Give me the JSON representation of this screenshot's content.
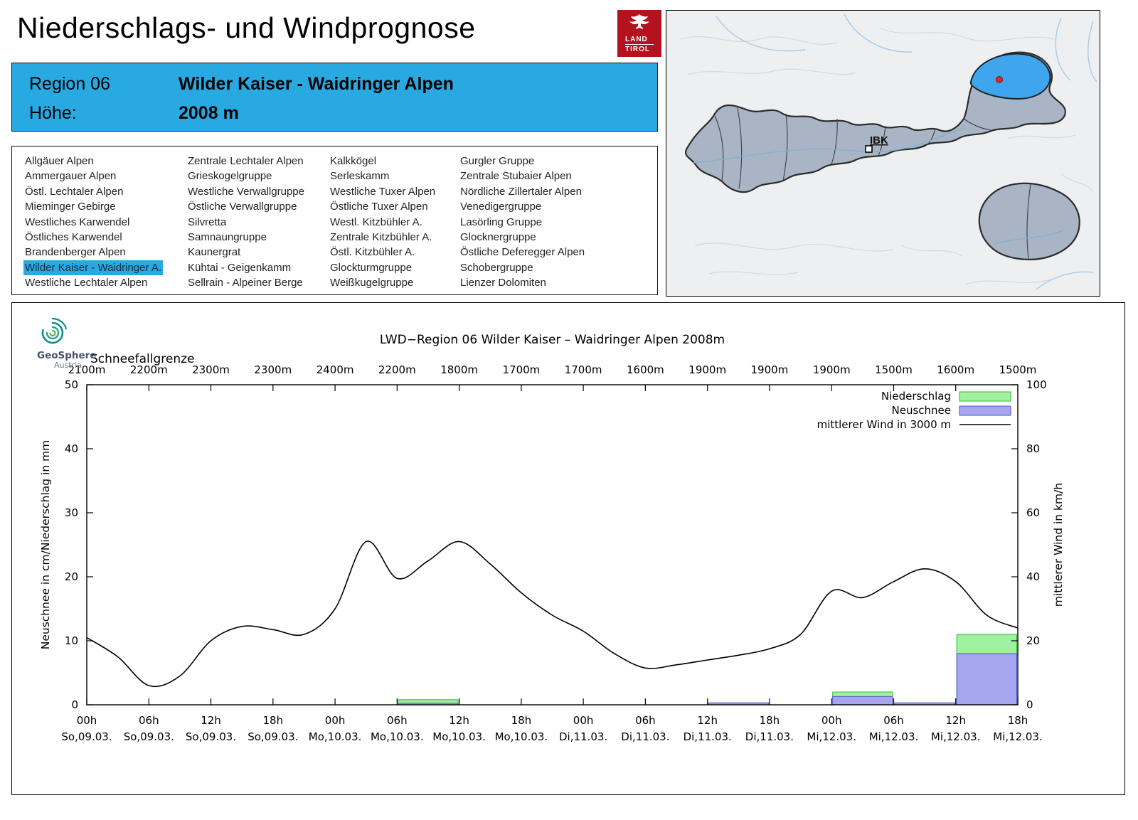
{
  "page": {
    "title": "Niederschlags- und Windprognose"
  },
  "logo": {
    "line1": "LAND",
    "line2": "TIROL"
  },
  "region_header": {
    "region_label": "Region 06",
    "region_value": "Wilder Kaiser - Waidringer Alpen",
    "altitude_label": "Höhe:",
    "altitude_value": "2008 m",
    "accent_color": "#29a9e1"
  },
  "map": {
    "city_label": "IBK"
  },
  "regions": {
    "selected": "Wilder Kaiser - Waidringer A.",
    "columns": [
      [
        "Allgäuer Alpen",
        "Ammergauer Alpen",
        "Östl. Lechtaler Alpen",
        "Mieminger Gebirge",
        "Westliches Karwendel",
        "Östliches Karwendel",
        "Brandenberger Alpen",
        "Wilder Kaiser - Waidringer A.",
        "Westliche Lechtaler Alpen"
      ],
      [
        "Zentrale Lechtaler Alpen",
        "Grieskogelgruppe",
        "Westliche Verwallgruppe",
        "Östliche Verwallgruppe",
        "Silvretta",
        "Samnaungruppe",
        "Kaunergrat",
        "Kühtai - Geigenkamm",
        "Sellrain - Alpeiner Berge"
      ],
      [
        "Kalkkögel",
        "Serleskamm",
        "Westliche Tuxer Alpen",
        "Östliche Tuxer Alpen",
        "Westl. Kitzbühler A.",
        "Zentrale Kitzbühler A.",
        "Östl. Kitzbühler A.",
        "Glockturmgruppe",
        "Weißkugelgruppe"
      ],
      [
        "Gurgler Gruppe",
        "Zentrale Stubaier Alpen",
        "Nördliche Zillertaler Alpen",
        "Venedigergruppe",
        "Lasörling Gruppe",
        "Glocknergruppe",
        "Östliche Deferegger Alpen",
        "Schobergruppe",
        "Lienzer Dolomiten"
      ]
    ]
  },
  "geosphere": {
    "name": "GeoSphere",
    "sub": "Austria"
  },
  "chart_data": {
    "type": "line+bar",
    "title": "LWD−Region 06 Wilder Kaiser – Waidringer Alpen 2008m",
    "snowline_label": "Schneefallgrenze",
    "snowline_values": [
      "2100m",
      "2200m",
      "2300m",
      "2300m",
      "2400m",
      "2200m",
      "1800m",
      "1700m",
      "1700m",
      "1600m",
      "1900m",
      "1900m",
      "1900m",
      "1500m",
      "1600m",
      "1500m"
    ],
    "x_hour_labels": [
      "00h",
      "06h",
      "12h",
      "18h",
      "00h",
      "06h",
      "12h",
      "18h",
      "00h",
      "06h",
      "12h",
      "18h",
      "00h",
      "06h",
      "12h",
      "18h"
    ],
    "x_date_labels": [
      "So,09.03.",
      "So,09.03.",
      "So,09.03.",
      "So,09.03.",
      "Mo,10.03.",
      "Mo,10.03.",
      "Mo,10.03.",
      "Mo,10.03.",
      "Di,11.03.",
      "Di,11.03.",
      "Di,11.03.",
      "Di,11.03.",
      "Mi,12.03.",
      "Mi,12.03.",
      "Mi,12.03.",
      "Mi,12.03."
    ],
    "ylabel_left": "Neuschnee in cm/Niederschlag in mm",
    "ylabel_right": "mittlerer Wind in km/h",
    "ylim_left": [
      0,
      50
    ],
    "ylim_right": [
      0,
      100
    ],
    "yticks_left": [
      0,
      10,
      20,
      30,
      40,
      50
    ],
    "yticks_right": [
      0,
      20,
      40,
      60,
      80,
      100
    ],
    "legend": [
      {
        "label": "Niederschlag",
        "type": "box",
        "fill": "#9ff09f",
        "stroke": "#2fbf2f"
      },
      {
        "label": "Neuschnee",
        "type": "box",
        "fill": "#a6a6ef",
        "stroke": "#5252cc"
      },
      {
        "label": "mittlerer Wind in 3000 m",
        "type": "line",
        "stroke": "#000000"
      }
    ],
    "wind_kmh": {
      "t_hours": [
        0,
        3,
        6,
        9,
        12,
        15,
        18,
        21,
        24,
        27,
        30,
        33,
        36,
        39,
        42,
        45,
        48,
        51,
        54,
        57,
        60,
        63,
        66,
        69,
        72,
        75,
        78,
        81,
        84,
        87,
        90
      ],
      "values": [
        21,
        15,
        6,
        9,
        20,
        24.5,
        23.5,
        22,
        30,
        51,
        39.5,
        45,
        51,
        44,
        35,
        28,
        23,
        16,
        11.5,
        12.5,
        14,
        15.5,
        17.5,
        22,
        35.5,
        33.5,
        38.5,
        42.5,
        38.5,
        28,
        24
      ]
    },
    "bars_6h": {
      "note": "one value per 6h interval between ticks, 15 intervals",
      "precip_mm": [
        0,
        0,
        0,
        0,
        0,
        0.8,
        0,
        0,
        0,
        0,
        0.3,
        0,
        2.0,
        0.3,
        11
      ],
      "neuschnee_cm": [
        0,
        0,
        0,
        0,
        0,
        0.25,
        0,
        0,
        0,
        0,
        0.3,
        0,
        1.3,
        0.3,
        8
      ]
    }
  }
}
